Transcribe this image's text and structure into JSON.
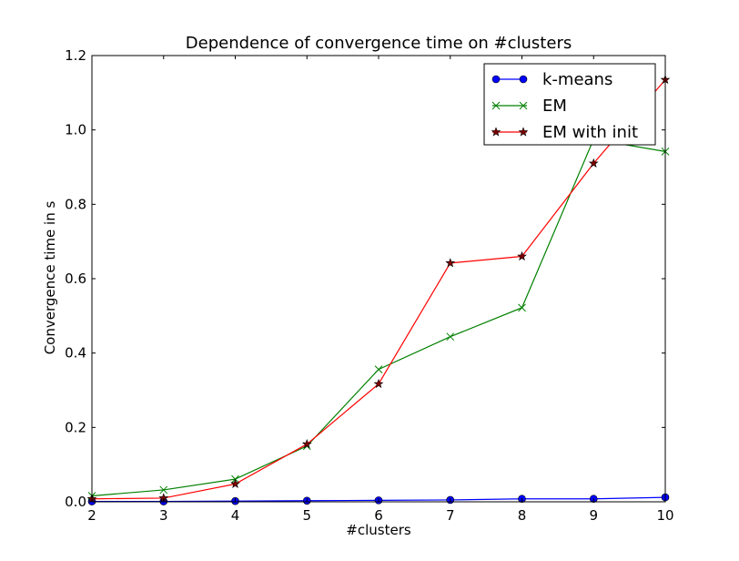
{
  "chart_data": {
    "type": "line",
    "title": "Dependence of convergence time on #clusters",
    "xlabel": "#clusters",
    "ylabel": "Convergence time in s",
    "x": [
      2,
      3,
      4,
      5,
      6,
      7,
      8,
      9,
      10
    ],
    "xlim": [
      2,
      10
    ],
    "ylim": [
      0.0,
      1.2
    ],
    "xticks": [
      "2",
      "3",
      "4",
      "5",
      "6",
      "7",
      "8",
      "9",
      "10"
    ],
    "yticks": [
      "0.0",
      "0.2",
      "0.4",
      "0.6",
      "0.8",
      "1.0",
      "1.2"
    ],
    "grid": false,
    "legend_position": "top-right",
    "series": [
      {
        "name": "k-means",
        "color": "#0000ff",
        "marker": "circle",
        "values": [
          0.001,
          0.001,
          0.002,
          0.003,
          0.004,
          0.005,
          0.008,
          0.008,
          0.012
        ]
      },
      {
        "name": "EM",
        "color": "#008000",
        "marker": "x",
        "values": [
          0.016,
          0.032,
          0.061,
          0.15,
          0.356,
          0.444,
          0.522,
          0.975,
          0.942
        ]
      },
      {
        "name": "EM with init",
        "color": "#ff0000",
        "marker": "star",
        "values": [
          0.008,
          0.01,
          0.048,
          0.155,
          0.317,
          0.642,
          0.66,
          0.91,
          1.135
        ]
      }
    ]
  }
}
